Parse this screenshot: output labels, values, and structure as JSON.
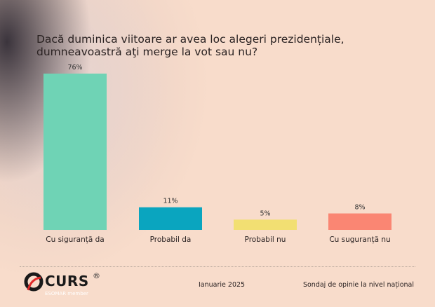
{
  "chart_data": {
    "type": "bar",
    "title": "Dacă duminica viitoare ar avea loc alegeri prezidențiale, dumneavoastră aţi merge la vot sau nu?",
    "categories": [
      "Cu siguranță da",
      "Probabil da",
      "Probabil nu",
      "Cu suguranță nu"
    ],
    "values": [
      76,
      11,
      5,
      8
    ],
    "data_labels": [
      "76%",
      "11%",
      "5%",
      "8%"
    ],
    "colors": [
      "#6fd3b5",
      "#0aa5bf",
      "#f2df72",
      "#fa8673"
    ],
    "ylim": [
      0,
      76
    ],
    "grid": false,
    "legend": "none"
  },
  "footer": {
    "logo": "CURS",
    "logo_sub": "ESOMAR member",
    "date": "Ianuarie 2025",
    "source": "Sondaj de opinie la nivel național"
  }
}
